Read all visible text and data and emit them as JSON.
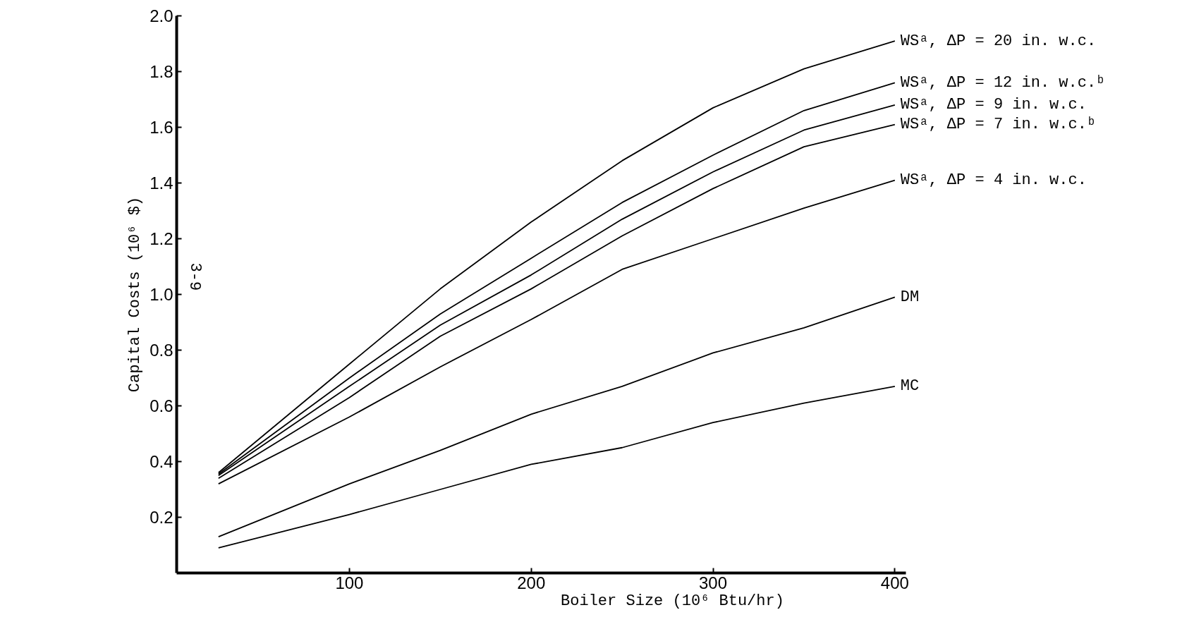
{
  "chart_data": {
    "type": "line",
    "xlabel": "Boiler Size (10⁶ Btu/hr)",
    "ylabel": "Capital Costs (10⁶ $)",
    "x": [
      28,
      100,
      150,
      200,
      250,
      300,
      350,
      400
    ],
    "xlim": [
      5,
      406
    ],
    "ylim": [
      0,
      2.0
    ],
    "xticks": [
      100,
      200,
      300,
      400
    ],
    "yticks": [
      {
        "value": 0.2,
        "label": "0.2"
      },
      {
        "value": 0.4,
        "label": "0.4"
      },
      {
        "value": 0.6,
        "label": "0.6"
      },
      {
        "value": 0.8,
        "label": "0.8"
      },
      {
        "value": 1.0,
        "label": "1.0"
      },
      {
        "value": 1.2,
        "label": "1.2"
      },
      {
        "value": 1.4,
        "label": "1.4"
      },
      {
        "value": 1.6,
        "label": "1.6"
      },
      {
        "value": 1.8,
        "label": "1.8"
      },
      {
        "value": 2.0,
        "label": "2.0"
      }
    ],
    "grid": false,
    "legend": false,
    "marker": "none",
    "line_style": "solid",
    "series": [
      {
        "name": "WSᵃ, ΔP = 20 in. w.c.",
        "color": "#000000",
        "values": [
          0.36,
          0.75,
          1.02,
          1.26,
          1.48,
          1.67,
          1.81,
          1.91
        ]
      },
      {
        "name": "WSᵃ, ΔP = 12 in. w.c.ᵇ",
        "color": "#000000",
        "values": [
          0.355,
          0.7,
          0.93,
          1.13,
          1.33,
          1.5,
          1.66,
          1.76
        ]
      },
      {
        "name": "WSᵃ, ΔP = 9 in. w.c.",
        "color": "#000000",
        "values": [
          0.35,
          0.67,
          0.89,
          1.07,
          1.27,
          1.44,
          1.59,
          1.68
        ]
      },
      {
        "name": "WSᵃ, ΔP = 7 in. w.c.ᵇ",
        "color": "#000000",
        "values": [
          0.34,
          0.63,
          0.85,
          1.02,
          1.21,
          1.38,
          1.53,
          1.61
        ]
      },
      {
        "name": "WSᵃ, ΔP = 4 in. w.c.",
        "color": "#000000",
        "values": [
          0.32,
          0.56,
          0.74,
          0.91,
          1.09,
          1.2,
          1.31,
          1.41
        ]
      },
      {
        "name": "DM",
        "color": "#000000",
        "values": [
          0.13,
          0.32,
          0.44,
          0.57,
          0.67,
          0.79,
          0.88,
          0.99
        ]
      },
      {
        "name": "MC",
        "color": "#000000",
        "values": [
          0.09,
          0.21,
          0.3,
          0.39,
          0.45,
          0.54,
          0.61,
          0.67
        ]
      }
    ],
    "annotations": [
      "3-9"
    ]
  }
}
